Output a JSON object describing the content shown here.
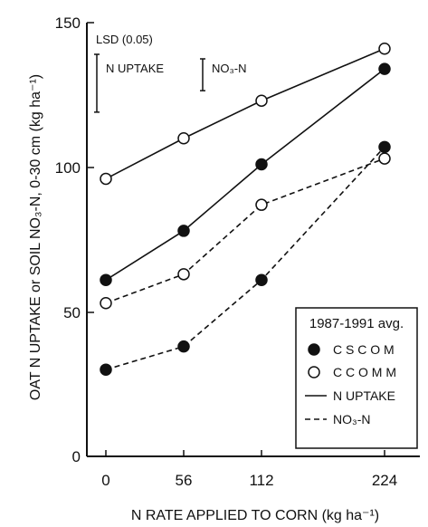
{
  "chart_data": {
    "type": "line",
    "xlabel": "N RATE APPLIED TO CORN (kg ha⁻¹)",
    "ylabel": "OAT N UPTAKE or SOIL NO₃-N, 0-30 cm  (kg ha⁻¹)",
    "x": [
      0,
      56,
      112,
      224
    ],
    "x_ticks": [
      "0",
      "56",
      "112",
      "224"
    ],
    "x_scale": "categorical-spaced",
    "ylim": [
      0,
      150
    ],
    "y_ticks": [
      0,
      50,
      100,
      150
    ],
    "grid": false,
    "series": [
      {
        "name": "CSCOM N UPTAKE",
        "rotation": "C S C O M",
        "measure": "N UPTAKE",
        "marker": "filled",
        "linestyle": "solid",
        "values": [
          61,
          78,
          101,
          134
        ]
      },
      {
        "name": "CCOMM N UPTAKE",
        "rotation": "C C O M M",
        "measure": "N UPTAKE",
        "marker": "open",
        "linestyle": "solid",
        "values": [
          96,
          110,
          123,
          141
        ]
      },
      {
        "name": "CSCOM NO3-N",
        "rotation": "C S C O M",
        "measure": "NO₃-N",
        "marker": "filled",
        "linestyle": "dashed",
        "values": [
          30,
          38,
          61,
          107
        ]
      },
      {
        "name": "CCOMM NO3-N",
        "rotation": "C C O M M",
        "measure": "NO₃-N",
        "marker": "open",
        "linestyle": "dashed",
        "values": [
          53,
          63,
          87,
          103
        ]
      }
    ],
    "lsd": {
      "title": "LSD (0.05)",
      "n_uptake_label": "N UPTAKE",
      "no3_label": "NO₃-N",
      "n_uptake_value": 20,
      "no3_value": 11
    },
    "legend": {
      "placement": "bottom-right",
      "title": "1987-1991 avg.",
      "entries": [
        {
          "label": "C S C O M",
          "kind": "filled-circle"
        },
        {
          "label": "C C O M M",
          "kind": "open-circle"
        },
        {
          "label": "N UPTAKE",
          "kind": "solid-line"
        },
        {
          "label": "NO₃-N",
          "kind": "dashed-line"
        }
      ]
    }
  }
}
